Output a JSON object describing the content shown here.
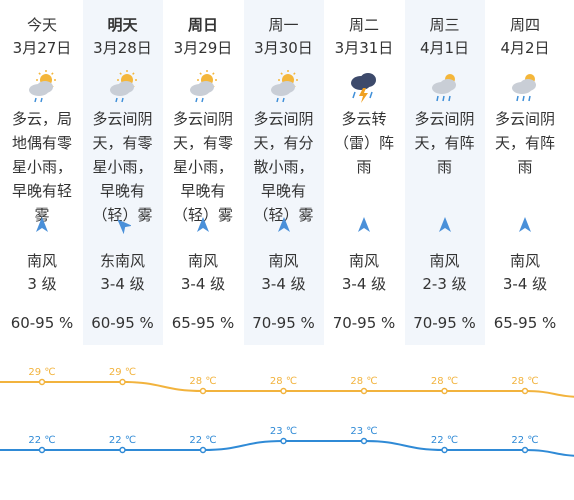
{
  "days": [
    {
      "day": "今天",
      "bold": false,
      "date": "3月27日",
      "icon": "partly-cloudy-rain-icon",
      "desc": "多云，局地偶有零星小雨，早晚有轻雾",
      "wind_dir": "南风",
      "wind_level": "3 级",
      "wind_icon": "wind-arrow-north-icon",
      "humidity": "60-95 %"
    },
    {
      "day": "明天",
      "bold": true,
      "date": "3月28日",
      "icon": "partly-cloudy-rain-icon",
      "desc": "多云间阴天，有零星小雨，早晚有（轻）雾",
      "wind_dir": "东南风",
      "wind_level": "3-4 级",
      "wind_icon": "wind-arrow-northwest-icon",
      "humidity": "60-95 %"
    },
    {
      "day": "周日",
      "bold": true,
      "date": "3月29日",
      "icon": "partly-cloudy-rain-icon",
      "desc": "多云间阴天，有零星小雨，早晚有（轻）雾",
      "wind_dir": "南风",
      "wind_level": "3-4 级",
      "wind_icon": "wind-arrow-north-icon",
      "humidity": "65-95 %"
    },
    {
      "day": "周一",
      "bold": false,
      "date": "3月30日",
      "icon": "partly-cloudy-rain-icon",
      "desc": "多云间阴天，有分散小雨，早晚有（轻）雾",
      "wind_dir": "南风",
      "wind_level": "3-4 级",
      "wind_icon": "wind-arrow-north-icon",
      "humidity": "70-95 %"
    },
    {
      "day": "周二",
      "bold": false,
      "date": "3月31日",
      "icon": "thunderstorm-icon",
      "desc": "多云转（雷）阵雨",
      "wind_dir": "南风",
      "wind_level": "3-4 级",
      "wind_icon": "wind-arrow-north-icon",
      "humidity": "70-95 %"
    },
    {
      "day": "周三",
      "bold": false,
      "date": "4月1日",
      "icon": "cloudy-rain-icon",
      "desc": "多云间阴天，有阵雨",
      "wind_dir": "南风",
      "wind_level": "2-3 级",
      "wind_icon": "wind-arrow-north-icon",
      "humidity": "70-95 %"
    },
    {
      "day": "周四",
      "bold": false,
      "date": "4月2日",
      "icon": "cloudy-rain-icon",
      "desc": "多云间阴天，有阵雨",
      "wind_dir": "南风",
      "wind_level": "3-4 级",
      "wind_icon": "wind-arrow-north-icon",
      "humidity": "65-95 %"
    }
  ],
  "temperature": {
    "unit": "℃",
    "high": [
      29,
      29,
      28,
      28,
      28,
      28,
      28
    ],
    "low": [
      22,
      22,
      22,
      23,
      23,
      22,
      22
    ],
    "high_color": "#f2b33d",
    "low_color": "#2f8ad6"
  },
  "colors": {
    "shade": "#f2f6fb",
    "arrow": "#4a90d9",
    "sun": "#f4b63a",
    "cloud": "#c9ced6",
    "rain": "#3f8fd8",
    "thunder": "#f0a020",
    "storm_cloud": "#3d4a6b"
  }
}
